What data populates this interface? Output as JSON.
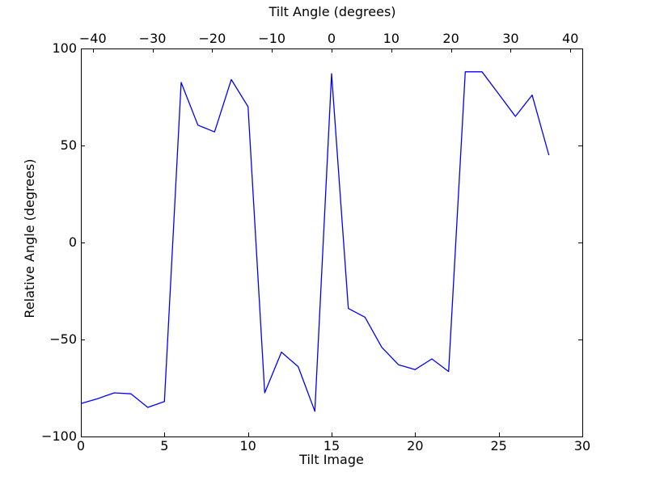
{
  "figure": {
    "background": "#ffffff",
    "frame_color": "#000000"
  },
  "chart_data": {
    "type": "line",
    "title": "Tilt Angle (degrees)",
    "xlabel": "Tilt Image",
    "ylabel": "Relative Angle (degrees)",
    "grid": false,
    "legend": "none",
    "top_axis": {
      "label": "Tilt Angle (degrees)",
      "lim": [
        -42,
        42
      ],
      "tick_values": [
        -40,
        -30,
        -20,
        -10,
        0,
        10,
        20,
        30,
        40
      ],
      "tick_labels": [
        "−40",
        "−30",
        "−20",
        "−10",
        "0",
        "10",
        "20",
        "30",
        "40"
      ]
    },
    "x_axis": {
      "lim": [
        0,
        30
      ],
      "tick_values": [
        0,
        5,
        10,
        15,
        20,
        25,
        30
      ],
      "tick_labels": [
        "0",
        "5",
        "10",
        "15",
        "20",
        "25",
        "30"
      ]
    },
    "y_axis": {
      "lim": [
        -100,
        100
      ],
      "tick_values": [
        100,
        50,
        0,
        -50,
        -100
      ],
      "tick_labels": [
        "100",
        "50",
        "0",
        "−50",
        "−100"
      ]
    },
    "series": [
      {
        "name": "relative-angle-vs-tilt-image",
        "color": "#0000ff",
        "x": [
          0,
          1,
          2,
          3,
          4,
          5,
          6,
          7,
          8,
          9,
          10,
          11,
          12,
          13,
          14,
          15,
          16,
          17,
          18,
          19,
          20,
          21,
          22,
          23,
          24,
          25,
          26,
          27,
          28
        ],
        "y": [
          -83,
          -80.5,
          -77.5,
          -78,
          -85,
          -82,
          82.5,
          60.5,
          57,
          84,
          70,
          -77.5,
          -56.5,
          -64,
          -87,
          87,
          -34,
          -38.5,
          -54,
          -63,
          -65.5,
          -60,
          -66.5,
          88,
          88,
          76.5,
          65,
          76,
          45
        ]
      }
    ]
  }
}
